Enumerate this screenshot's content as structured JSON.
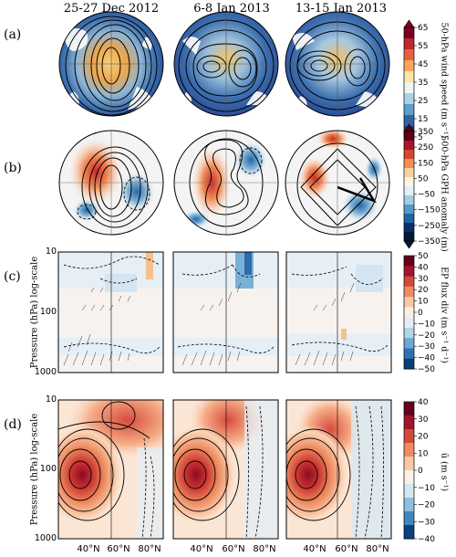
{
  "column_titles": [
    "25-27 Dec 2012",
    "6-8 Jan 2013",
    "13-15 Jan 2013"
  ],
  "row_labels": [
    "(a)",
    "(b)",
    "(c)",
    "(d)"
  ],
  "y_axis_label": "Pressure (hPa) log-scale",
  "y_ticks": [
    "10",
    "100",
    "1000"
  ],
  "x_ticks": [
    "40°N",
    "60°N",
    "80°N"
  ],
  "colorbars": [
    {
      "label": "50-hPa wind speed (m s⁻¹)",
      "ticks": [
        "65",
        "55",
        "45",
        "35",
        "25",
        "15",
        "5"
      ],
      "colors": [
        "#7d0022",
        "#c0262d",
        "#e8613c",
        "#f8a65d",
        "#fde6a3",
        "#eef6f0",
        "#aad2e5",
        "#5d9ecb",
        "#2f64a6",
        "#233f8f"
      ]
    },
    {
      "label": "500-hPa GPH anomaly (m)",
      "ticks": [
        "350",
        "250",
        "150",
        "50",
        "−50",
        "−150",
        "−250",
        "−350"
      ],
      "colors": [
        "#5a0016",
        "#a8152a",
        "#d8452f",
        "#f58c52",
        "#fcd29c",
        "#fdf4e6",
        "#e4eff6",
        "#a4cde3",
        "#539bc7",
        "#1f63a7",
        "#0b2f6c",
        "#041838"
      ]
    },
    {
      "label": "EP flux div (m s⁻¹ d⁻¹)",
      "ticks": [
        "50",
        "40",
        "30",
        "20",
        "10",
        "0",
        "−10",
        "−20",
        "−30",
        "−40",
        "−50"
      ],
      "colors": [
        "#67001f",
        "#a2132c",
        "#d24a3a",
        "#ef8a62",
        "#fbc8a6",
        "#fbeee3",
        "#e4eef5",
        "#b1d4e7",
        "#6aa9d0",
        "#2d73b3",
        "#083d7a"
      ]
    },
    {
      "label": "ū (m s⁻¹)",
      "ticks": [
        "40",
        "30",
        "20",
        "10",
        "0",
        "−10",
        "−20",
        "−30",
        "−40"
      ],
      "colors": [
        "#67001f",
        "#a2132c",
        "#d24a3a",
        "#ef8a62",
        "#fbc8a6",
        "#fbf0e6",
        "#d4e6f1",
        "#8cbfdd",
        "#3d87c0",
        "#0b3f7e"
      ]
    }
  ]
}
